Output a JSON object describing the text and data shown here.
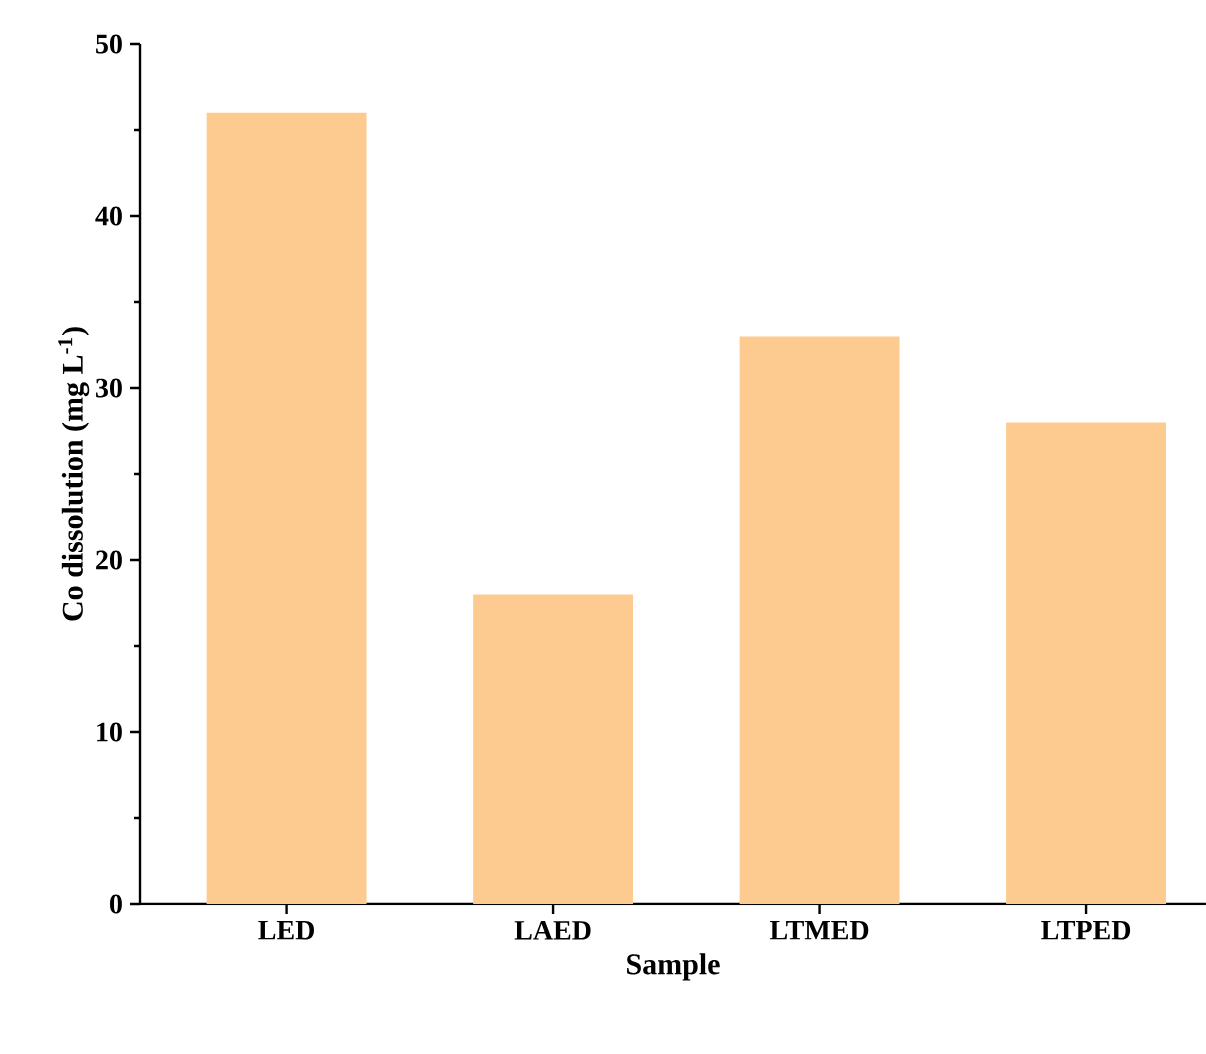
{
  "chart_data": {
    "type": "bar",
    "xlabel": "Sample",
    "ylabel": "Co dissolution (mg L$^{-1}$)",
    "categories": [
      "LED",
      "LAED",
      "LTMED",
      "LTPED"
    ],
    "values": [
      46,
      18,
      33,
      28
    ],
    "color": "#fdcb8f",
    "ylim": [
      0,
      50
    ],
    "yticks": [
      0,
      10,
      20,
      30,
      40,
      50
    ]
  }
}
